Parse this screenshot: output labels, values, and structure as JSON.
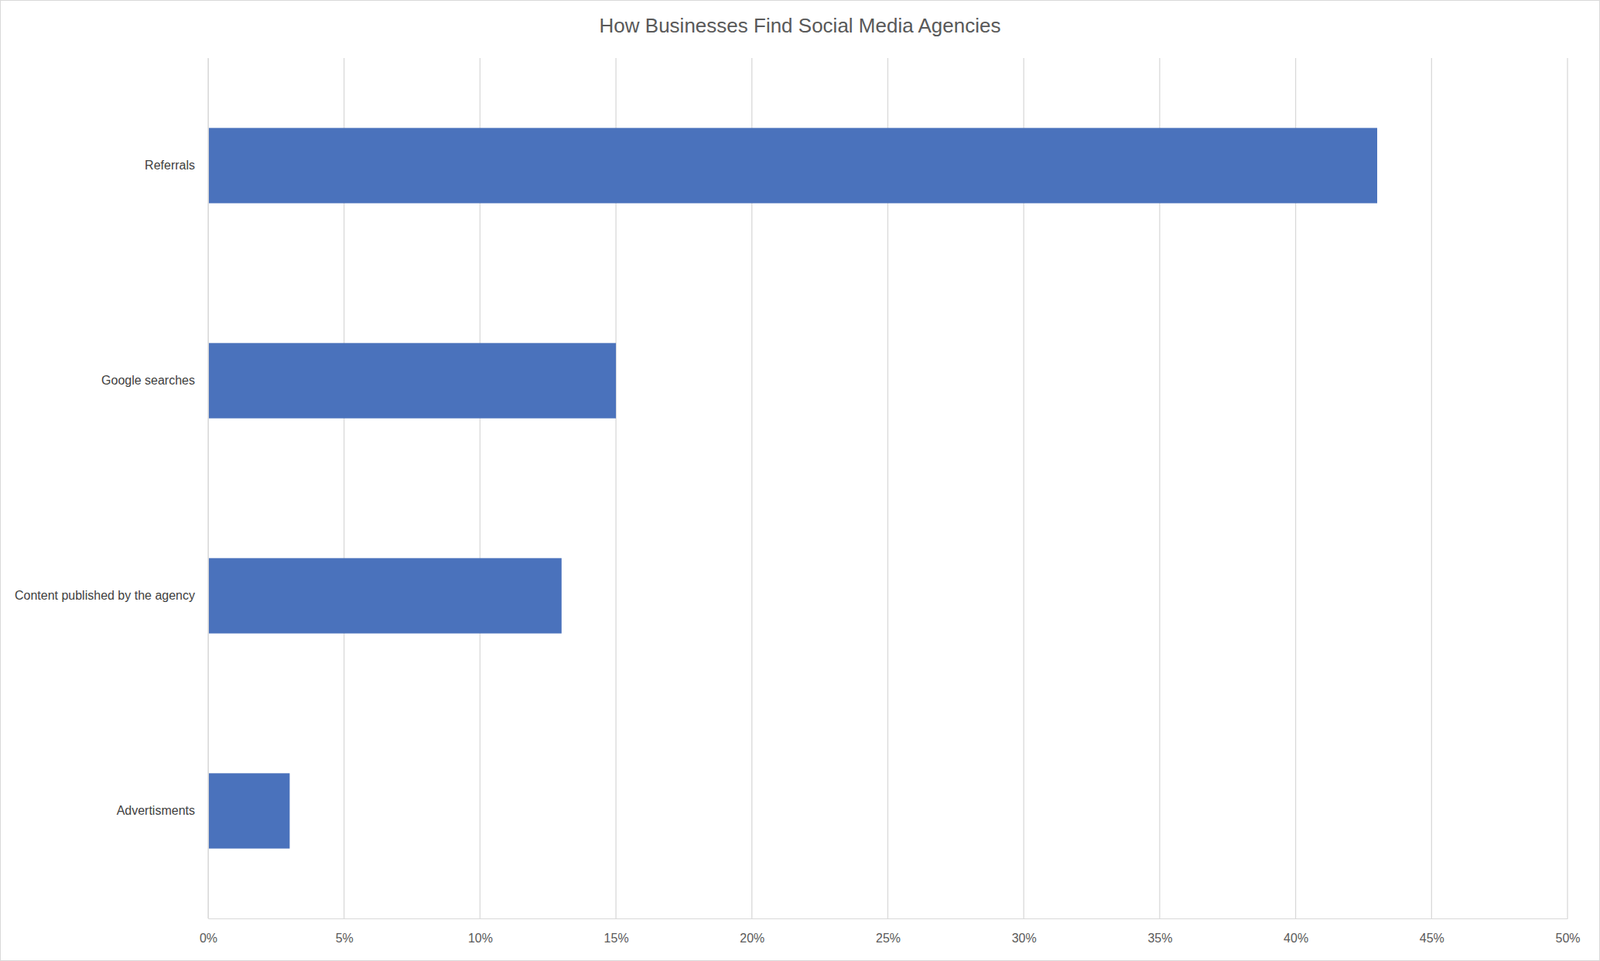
{
  "chart_data": {
    "type": "bar",
    "title": "How Businesses Find Social Media Agencies",
    "orientation": "horizontal",
    "categories": [
      "Referrals",
      "Google searches",
      "Content published by the agency",
      "Advertisments"
    ],
    "values": [
      43,
      15,
      13,
      3
    ],
    "color": "#4a72bc",
    "xlim": [
      0,
      50
    ],
    "xticks": [
      {
        "value": 0,
        "label": "0%"
      },
      {
        "value": 5,
        "label": "5%"
      },
      {
        "value": 10,
        "label": "10%"
      },
      {
        "value": 15,
        "label": "15%"
      },
      {
        "value": 20,
        "label": "20%"
      },
      {
        "value": 25,
        "label": "25%"
      },
      {
        "value": 30,
        "label": "30%"
      },
      {
        "value": 35,
        "label": "35%"
      },
      {
        "value": 40,
        "label": "40%"
      },
      {
        "value": 45,
        "label": "45%"
      },
      {
        "value": 50,
        "label": "50%"
      }
    ],
    "grid": true
  }
}
